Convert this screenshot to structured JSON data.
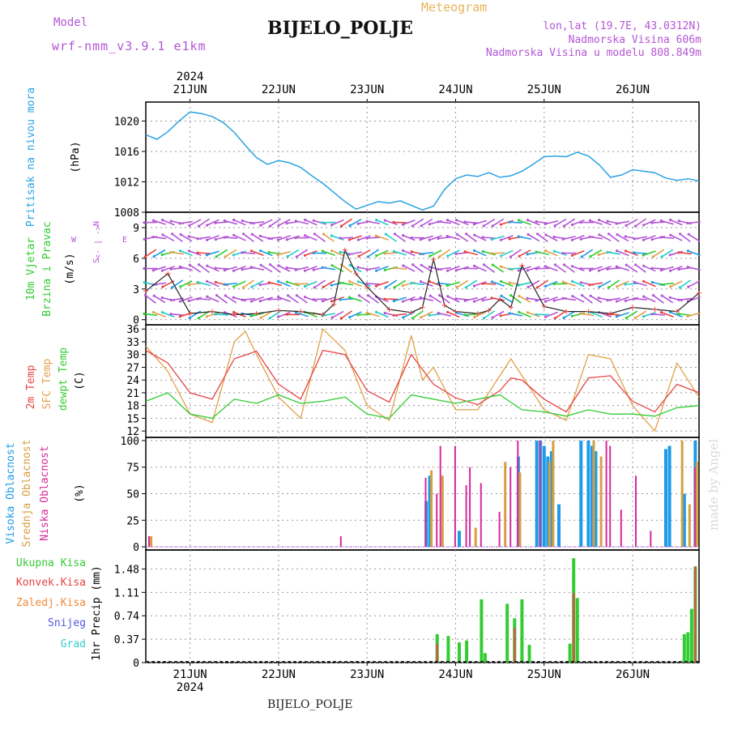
{
  "header": {
    "model_label": "Model",
    "model_name": "wrf-nmm_v3.9.1 e1km",
    "station": "BIJELO_POLJE",
    "meteogram_label": "Meteogram",
    "lonlat": "lon,lat (19.7E, 43.0312N)",
    "altitude": "Nadmorska Visina 606m",
    "model_altitude": "Nadmorska Visina u modelu 808.849m"
  },
  "credit": "made by Angel",
  "footer_station": "BIJELO_POLJE",
  "colors": {
    "pressure": "#2aa3e0",
    "temp2m": "#e84343",
    "sfc_temp": "#e2a04a",
    "dewpt": "#33cc33",
    "high_cloud": "#1e9be8",
    "mid_cloud": "#d6a040",
    "low_cloud": "#d62a9b",
    "total_precip": "#33cc33",
    "conv_precip": "#e84343",
    "frozen": "#f08a3c",
    "snow": "#5555e0",
    "grad": "#33cccc",
    "purple": "#b455d6",
    "wind_speed": "#222222",
    "gust_marks": "#e84343"
  },
  "chart_data": [
    {
      "type": "line",
      "panel": "pressure",
      "ylabel_rotated": "Pritisak na nivou mora",
      "unit": "(hPa)",
      "x_ticks_top": [
        "21JUN",
        "22JUN",
        "23JUN",
        "24JUN",
        "25JUN",
        "26JUN"
      ],
      "year_top": "2024",
      "yticks": [
        1008,
        1012,
        1016,
        1020
      ],
      "ylim": [
        1008,
        1022.5
      ],
      "xlim": [
        "2024-06-20 12:00",
        "2024-06-26 18:00"
      ],
      "series": [
        {
          "name": "",
          "x": [
            "2024-06-20 12:00",
            "2024-06-20 15:00",
            "2024-06-20 18:00",
            "2024-06-20 21:00",
            "2024-06-21 00:00",
            "2024-06-21 03:00",
            "2024-06-21 06:00",
            "2024-06-21 09:00",
            "2024-06-21 12:00",
            "2024-06-21 15:00",
            "2024-06-21 18:00",
            "2024-06-21 21:00",
            "2024-06-22 00:00",
            "2024-06-22 03:00",
            "2024-06-22 06:00",
            "2024-06-22 09:00",
            "2024-06-22 12:00",
            "2024-06-22 15:00",
            "2024-06-22 18:00",
            "2024-06-22 21:00",
            "2024-06-23 00:00",
            "2024-06-23 03:00",
            "2024-06-23 06:00",
            "2024-06-23 09:00",
            "2024-06-23 12:00",
            "2024-06-23 15:00",
            "2024-06-23 18:00",
            "2024-06-23 21:00",
            "2024-06-24 00:00",
            "2024-06-24 03:00",
            "2024-06-24 06:00",
            "2024-06-24 09:00",
            "2024-06-24 12:00",
            "2024-06-24 15:00",
            "2024-06-24 18:00",
            "2024-06-24 21:00",
            "2024-06-25 00:00",
            "2024-06-25 03:00",
            "2024-06-25 06:00",
            "2024-06-25 09:00",
            "2024-06-25 12:00",
            "2024-06-25 15:00",
            "2024-06-25 18:00",
            "2024-06-25 21:00",
            "2024-06-26 00:00",
            "2024-06-26 03:00",
            "2024-06-26 06:00",
            "2024-06-26 09:00",
            "2024-06-26 12:00",
            "2024-06-26 15:00",
            "2024-06-26 18:00"
          ],
          "values": [
            1018.2,
            1017.6,
            1018.6,
            1020.0,
            1021.2,
            1021.0,
            1020.6,
            1019.8,
            1018.5,
            1016.8,
            1015.2,
            1014.3,
            1014.8,
            1014.5,
            1013.9,
            1012.8,
            1011.8,
            1010.6,
            1009.4,
            1008.4,
            1008.9,
            1009.4,
            1009.2,
            1009.5,
            1008.9,
            1008.3,
            1008.8,
            1011.0,
            1012.4,
            1012.9,
            1012.7,
            1013.2,
            1012.6,
            1012.8,
            1013.4,
            1014.3,
            1015.3,
            1015.4,
            1015.3,
            1015.9,
            1015.4,
            1014.2,
            1012.6,
            1012.9,
            1013.6,
            1013.4,
            1013.2,
            1012.5,
            1012.2,
            1012.4,
            1012.1
          ]
        }
      ]
    },
    {
      "type": "line",
      "panel": "wind",
      "ylabel_rotated_1": "10m Vjetar",
      "ylabel_rotated_2": "Brzina i Pravac",
      "unit": "(m/s)",
      "compass_n": "N",
      "compass_w": "W",
      "compass_e": "E",
      "compass_s": "S",
      "compass_arrows": "<- | ->",
      "yticks": [
        0,
        3,
        6,
        9
      ],
      "ylim": [
        -0.5,
        10.5
      ],
      "series": [
        {
          "name": "",
          "x": [
            "2024-06-20 12:00",
            "2024-06-20 18:00",
            "2024-06-21 00:00",
            "2024-06-21 06:00",
            "2024-06-21 12:00",
            "2024-06-21 18:00",
            "2024-06-22 00:00",
            "2024-06-22 06:00",
            "2024-06-22 12:00",
            "2024-06-22 15:00",
            "2024-06-22 18:00",
            "2024-06-22 21:00",
            "2024-06-23 00:00",
            "2024-06-23 06:00",
            "2024-06-23 12:00",
            "2024-06-23 15:00",
            "2024-06-23 18:00",
            "2024-06-23 21:00",
            "2024-06-24 00:00",
            "2024-06-24 06:00",
            "2024-06-24 09:00",
            "2024-06-24 12:00",
            "2024-06-24 15:00",
            "2024-06-24 18:00",
            "2024-06-25 00:00",
            "2024-06-25 06:00",
            "2024-06-25 12:00",
            "2024-06-25 18:00",
            "2024-06-26 00:00",
            "2024-06-26 06:00",
            "2024-06-26 12:00",
            "2024-06-26 18:00"
          ],
          "values": [
            2.8,
            4.5,
            0.6,
            0.8,
            0.5,
            0.6,
            0.9,
            0.8,
            0.5,
            1.5,
            6.8,
            4.5,
            3.2,
            1.0,
            0.7,
            1.2,
            5.9,
            1.4,
            0.8,
            0.6,
            0.9,
            2.0,
            1.2,
            5.3,
            1.3,
            0.8,
            0.8,
            0.6,
            1.2,
            1.0,
            0.8,
            2.6
          ]
        }
      ]
    },
    {
      "type": "line",
      "panel": "temperature",
      "ylabel_temp": "2m Temp",
      "ylabel_sfc": "SFC Temp",
      "ylabel_dew": "dewpt Temp",
      "unit": "(C)",
      "yticks": [
        12,
        15,
        18,
        21,
        24,
        27,
        30,
        33,
        36
      ],
      "ylim": [
        10.5,
        37
      ],
      "series": [
        {
          "name": "2m Temp",
          "x": [
            "2024-06-20 12:00",
            "2024-06-20 18:00",
            "2024-06-21 00:00",
            "2024-06-21 06:00",
            "2024-06-21 12:00",
            "2024-06-21 18:00",
            "2024-06-22 00:00",
            "2024-06-22 06:00",
            "2024-06-22 12:00",
            "2024-06-22 18:00",
            "2024-06-23 00:00",
            "2024-06-23 06:00",
            "2024-06-23 12:00",
            "2024-06-23 15:00",
            "2024-06-23 18:00",
            "2024-06-24 00:00",
            "2024-06-24 06:00",
            "2024-06-24 12:00",
            "2024-06-24 15:00",
            "2024-06-24 18:00",
            "2024-06-25 00:00",
            "2024-06-25 06:00",
            "2024-06-25 12:00",
            "2024-06-25 18:00",
            "2024-06-26 00:00",
            "2024-06-26 06:00",
            "2024-06-26 12:00",
            "2024-06-26 18:00"
          ],
          "values": [
            31,
            28,
            21,
            19.5,
            29,
            30.8,
            23,
            19.5,
            31,
            30,
            21.5,
            18.8,
            30,
            26.5,
            23,
            19.8,
            18.2,
            21.5,
            24.5,
            24,
            19.5,
            16.5,
            24.5,
            25,
            19,
            16.5,
            23,
            21
          ]
        },
        {
          "name": "SFC Temp",
          "x": [
            "2024-06-20 12:00",
            "2024-06-20 18:00",
            "2024-06-21 00:00",
            "2024-06-21 06:00",
            "2024-06-21 12:00",
            "2024-06-21 15:00",
            "2024-06-21 18:00",
            "2024-06-22 00:00",
            "2024-06-22 06:00",
            "2024-06-22 12:00",
            "2024-06-22 18:00",
            "2024-06-23 00:00",
            "2024-06-23 06:00",
            "2024-06-23 12:00",
            "2024-06-23 15:00",
            "2024-06-23 18:00",
            "2024-06-24 00:00",
            "2024-06-24 06:00",
            "2024-06-24 12:00",
            "2024-06-24 15:00",
            "2024-06-24 18:00",
            "2024-06-25 00:00",
            "2024-06-25 06:00",
            "2024-06-25 12:00",
            "2024-06-25 18:00",
            "2024-06-26 00:00",
            "2024-06-26 06:00",
            "2024-06-26 12:00",
            "2024-06-26 18:00"
          ],
          "values": [
            32,
            26,
            16,
            14,
            33,
            35.5,
            30,
            20,
            15,
            36,
            31,
            18,
            14.5,
            34.5,
            24,
            27,
            17,
            17,
            25,
            29,
            25,
            17,
            14.5,
            30,
            29,
            18,
            12,
            28,
            20
          ]
        },
        {
          "name": "dewpt Temp",
          "x": [
            "2024-06-20 12:00",
            "2024-06-20 18:00",
            "2024-06-21 00:00",
            "2024-06-21 06:00",
            "2024-06-21 12:00",
            "2024-06-21 18:00",
            "2024-06-22 00:00",
            "2024-06-22 06:00",
            "2024-06-22 12:00",
            "2024-06-22 18:00",
            "2024-06-23 00:00",
            "2024-06-23 06:00",
            "2024-06-23 12:00",
            "2024-06-23 18:00",
            "2024-06-24 00:00",
            "2024-06-24 06:00",
            "2024-06-24 12:00",
            "2024-06-24 18:00",
            "2024-06-25 00:00",
            "2024-06-25 06:00",
            "2024-06-25 12:00",
            "2024-06-25 18:00",
            "2024-06-26 00:00",
            "2024-06-26 06:00",
            "2024-06-26 12:00",
            "2024-06-26 18:00"
          ],
          "values": [
            19,
            21,
            16,
            15,
            19.5,
            18.5,
            20.5,
            18.5,
            19,
            20,
            16,
            15,
            20.5,
            19.5,
            18.5,
            19.5,
            20.5,
            17,
            16.5,
            15.5,
            17,
            16,
            16,
            15.5,
            17.5,
            18
          ]
        }
      ]
    },
    {
      "type": "bar",
      "panel": "cloud",
      "ylabel_high": "Visoka Oblacnost",
      "ylabel_mid": "Srednja Oblacnost",
      "ylabel_low": "Niska Oblacnost",
      "unit": "(%)",
      "yticks": [
        0,
        25,
        50,
        75,
        100
      ],
      "ylim": [
        -3,
        103
      ],
      "series": [
        {
          "name": "Visoka Oblacnost",
          "x": [
            "2024-06-23 16:00",
            "2024-06-23 17:00",
            "2024-06-24 01:00",
            "2024-06-24 17:00",
            "2024-06-24 22:00",
            "2024-06-24 23:00",
            "2024-06-25 00:00",
            "2024-06-25 01:00",
            "2024-06-25 02:00",
            "2024-06-25 04:00",
            "2024-06-25 10:00",
            "2024-06-25 12:00",
            "2024-06-25 13:00",
            "2024-06-25 14:00",
            "2024-06-26 09:00",
            "2024-06-26 10:00",
            "2024-06-26 14:00",
            "2024-06-26 17:00"
          ],
          "values": [
            43,
            67,
            15,
            85,
            100,
            100,
            95,
            85,
            90,
            40,
            100,
            100,
            95,
            90,
            92,
            95,
            50,
            100
          ]
        },
        {
          "name": "Srednja Oblacnost",
          "x": [
            "2024-06-20 13:00",
            "2024-06-23 17:00",
            "2024-06-23 20:00",
            "2024-06-24 05:00",
            "2024-06-24 13:00",
            "2024-06-24 17:00",
            "2024-06-25 01:00",
            "2024-06-25 02:00",
            "2024-06-25 13:00",
            "2024-06-25 15:00",
            "2024-06-26 13:00",
            "2024-06-26 15:00",
            "2024-06-26 17:00"
          ],
          "values": [
            10,
            72,
            67,
            18,
            80,
            70,
            80,
            100,
            100,
            85,
            100,
            40,
            80
          ]
        },
        {
          "name": "Niska Oblacnost",
          "x": [
            "2024-06-20 12:00",
            "2024-06-22 16:00",
            "2024-06-23 15:00",
            "2024-06-23 18:00",
            "2024-06-23 19:00",
            "2024-06-23 23:00",
            "2024-06-24 02:00",
            "2024-06-24 03:00",
            "2024-06-24 06:00",
            "2024-06-24 11:00",
            "2024-06-24 14:00",
            "2024-06-24 16:00",
            "2024-06-24 22:00",
            "2024-06-25 16:00",
            "2024-06-25 17:00",
            "2024-06-25 20:00",
            "2024-06-26 00:00",
            "2024-06-26 04:00",
            "2024-06-26 16:00"
          ],
          "values": [
            10,
            10,
            65,
            50,
            95,
            95,
            58,
            75,
            60,
            33,
            75,
            100,
            100,
            100,
            95,
            35,
            67,
            15,
            75
          ]
        }
      ]
    },
    {
      "type": "bar",
      "panel": "precipitation",
      "legend": [
        "Ukupna Kisa",
        "Konvek.Kisa",
        "Zaledj.Kisa",
        "Snijeg",
        "Grad"
      ],
      "unit": "1hr Precip (mm)",
      "yticks": [
        0,
        0.37,
        0.74,
        1.11,
        1.48
      ],
      "ylim": [
        0,
        1.78
      ],
      "x_ticks_bottom": [
        "21JUN",
        "22JUN",
        "23JUN",
        "24JUN",
        "25JUN",
        "26JUN"
      ],
      "year_bottom": "2024",
      "series": [
        {
          "name": "Ukupna Kisa",
          "x": [
            "2024-06-23 19:00",
            "2024-06-23 22:00",
            "2024-06-24 01:00",
            "2024-06-24 03:00",
            "2024-06-24 07:00",
            "2024-06-24 08:00",
            "2024-06-24 14:00",
            "2024-06-24 16:00",
            "2024-06-24 18:00",
            "2024-06-24 20:00",
            "2024-06-25 07:00",
            "2024-06-25 08:00",
            "2024-06-25 09:00",
            "2024-06-26 14:00",
            "2024-06-26 15:00",
            "2024-06-26 16:00",
            "2024-06-26 17:00"
          ],
          "values": [
            0.45,
            0.42,
            0.32,
            0.35,
            1.0,
            0.15,
            0.93,
            0.7,
            1.0,
            0.28,
            0.3,
            1.65,
            1.02,
            0.45,
            0.48,
            0.85,
            1.52
          ]
        },
        {
          "name": "Konvek.Kisa",
          "x": [
            "2024-06-23 19:00",
            "2024-06-24 16:00",
            "2024-06-25 08:00",
            "2024-06-26 17:00"
          ],
          "values": [
            0.3,
            0.55,
            1.1,
            1.52
          ]
        }
      ]
    }
  ]
}
